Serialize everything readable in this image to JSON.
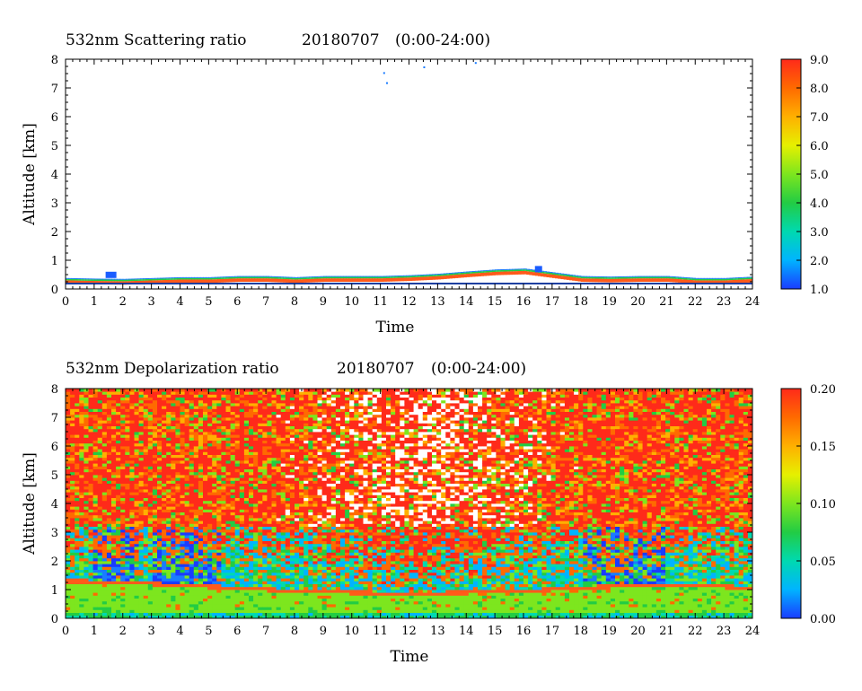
{
  "chart_data": [
    {
      "type": "heatmap",
      "title": "532nm Scattering ratio",
      "date": "20180707",
      "period": "(0:00-24:00)",
      "xlabel": "Time",
      "ylabel": "Altitude [km]",
      "xlim": [
        0,
        24
      ],
      "ylim": [
        0,
        8
      ],
      "x_ticks": [
        "0",
        "1",
        "2",
        "3",
        "4",
        "5",
        "6",
        "7",
        "8",
        "9",
        "10",
        "11",
        "12",
        "13",
        "14",
        "15",
        "16",
        "17",
        "18",
        "19",
        "20",
        "21",
        "22",
        "23",
        "24"
      ],
      "y_ticks": [
        "0",
        "1",
        "2",
        "3",
        "4",
        "5",
        "6",
        "7",
        "8"
      ],
      "colorbar": {
        "range": [
          1.0,
          9.0
        ],
        "labels": [
          "1.0",
          "2.0",
          "3.0",
          "4.0",
          "5.0",
          "6.0",
          "7.0",
          "8.0",
          "9.0"
        ],
        "colors": [
          "#1a3cff",
          "#00b4ff",
          "#00d9b0",
          "#22cc44",
          "#7de61e",
          "#e6f000",
          "#ffb000",
          "#ff6a00",
          "#ff2a1a"
        ]
      },
      "layer_top_km": [
        [
          0,
          0.35
        ],
        [
          1,
          0.33
        ],
        [
          2,
          0.32
        ],
        [
          3,
          0.35
        ],
        [
          4,
          0.38
        ],
        [
          5,
          0.38
        ],
        [
          6,
          0.42
        ],
        [
          7,
          0.42
        ],
        [
          8,
          0.38
        ],
        [
          9,
          0.42
        ],
        [
          10,
          0.42
        ],
        [
          11,
          0.42
        ],
        [
          12,
          0.45
        ],
        [
          13,
          0.5
        ],
        [
          14,
          0.58
        ],
        [
          15,
          0.65
        ],
        [
          16,
          0.68
        ],
        [
          17,
          0.55
        ],
        [
          18,
          0.42
        ],
        [
          19,
          0.4
        ],
        [
          20,
          0.42
        ],
        [
          21,
          0.42
        ],
        [
          22,
          0.35
        ],
        [
          23,
          0.35
        ],
        [
          24,
          0.4
        ]
      ]
    },
    {
      "type": "heatmap",
      "title": "532nm Depolarization ratio",
      "date": "20180707",
      "period": "(0:00-24:00)",
      "xlabel": "Time",
      "ylabel": "Altitude [km]",
      "xlim": [
        0,
        24
      ],
      "ylim": [
        0,
        8
      ],
      "x_ticks": [
        "0",
        "1",
        "2",
        "3",
        "4",
        "5",
        "6",
        "7",
        "8",
        "9",
        "10",
        "11",
        "12",
        "13",
        "14",
        "15",
        "16",
        "17",
        "18",
        "19",
        "20",
        "21",
        "22",
        "23",
        "24"
      ],
      "y_ticks": [
        "0",
        "1",
        "2",
        "3",
        "4",
        "5",
        "6",
        "7",
        "8"
      ],
      "colorbar": {
        "range": [
          0.0,
          0.2
        ],
        "labels": [
          "0.00",
          "0.05",
          "0.10",
          "0.15",
          "0.20"
        ],
        "colors": [
          "#1a3cff",
          "#00b4ff",
          "#00d9b0",
          "#22cc44",
          "#7de61e",
          "#e6f000",
          "#ffb000",
          "#ff6a00",
          "#ff2a1a"
        ]
      },
      "boundary_layer_top_km": [
        [
          0,
          1.25
        ],
        [
          2,
          1.2
        ],
        [
          4,
          1.1
        ],
        [
          6,
          1.0
        ],
        [
          8,
          0.9
        ],
        [
          10,
          0.85
        ],
        [
          12,
          0.8
        ],
        [
          14,
          0.85
        ],
        [
          16,
          0.9
        ],
        [
          18,
          1.0
        ],
        [
          20,
          1.1
        ],
        [
          22,
          1.1
        ],
        [
          24,
          1.0
        ]
      ]
    }
  ]
}
